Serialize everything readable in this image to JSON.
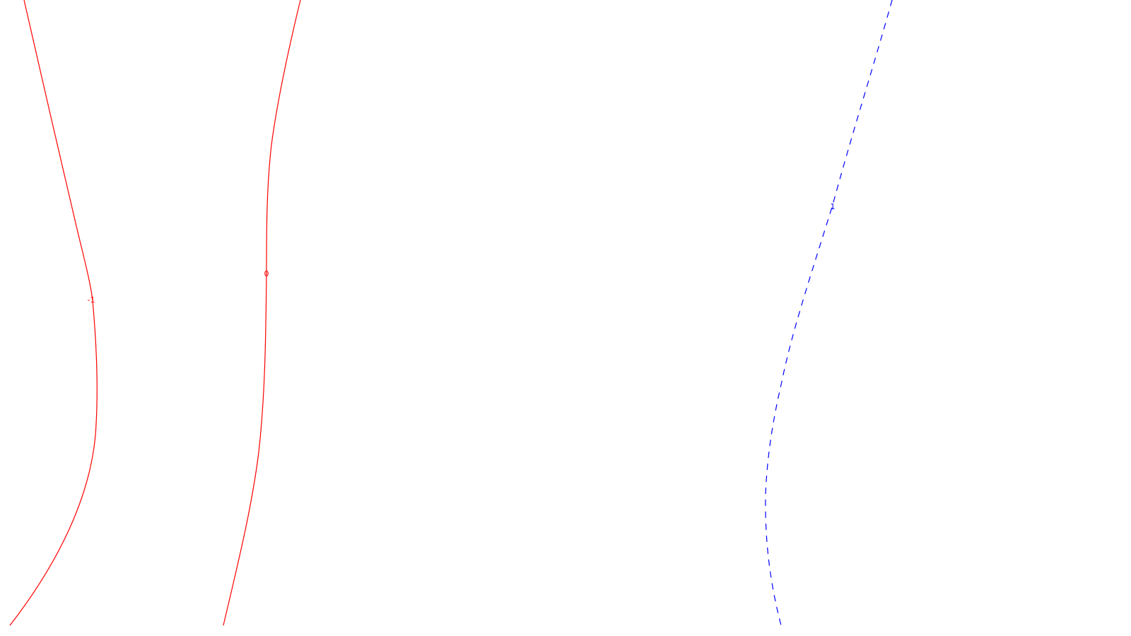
{
  "chart_data": {
    "type": "contour",
    "title": "",
    "xlabel": "",
    "ylabel": "",
    "grid": false,
    "legend": "none",
    "contours": [
      {
        "level": -1,
        "label": "-1",
        "color": "#ff0000",
        "dash": "solid"
      },
      {
        "level": 0,
        "label": "0",
        "color": "#ff0000",
        "dash": "solid"
      },
      {
        "level": 1,
        "label": "1",
        "color": "#0000ff",
        "dash": "dashed"
      }
    ]
  }
}
